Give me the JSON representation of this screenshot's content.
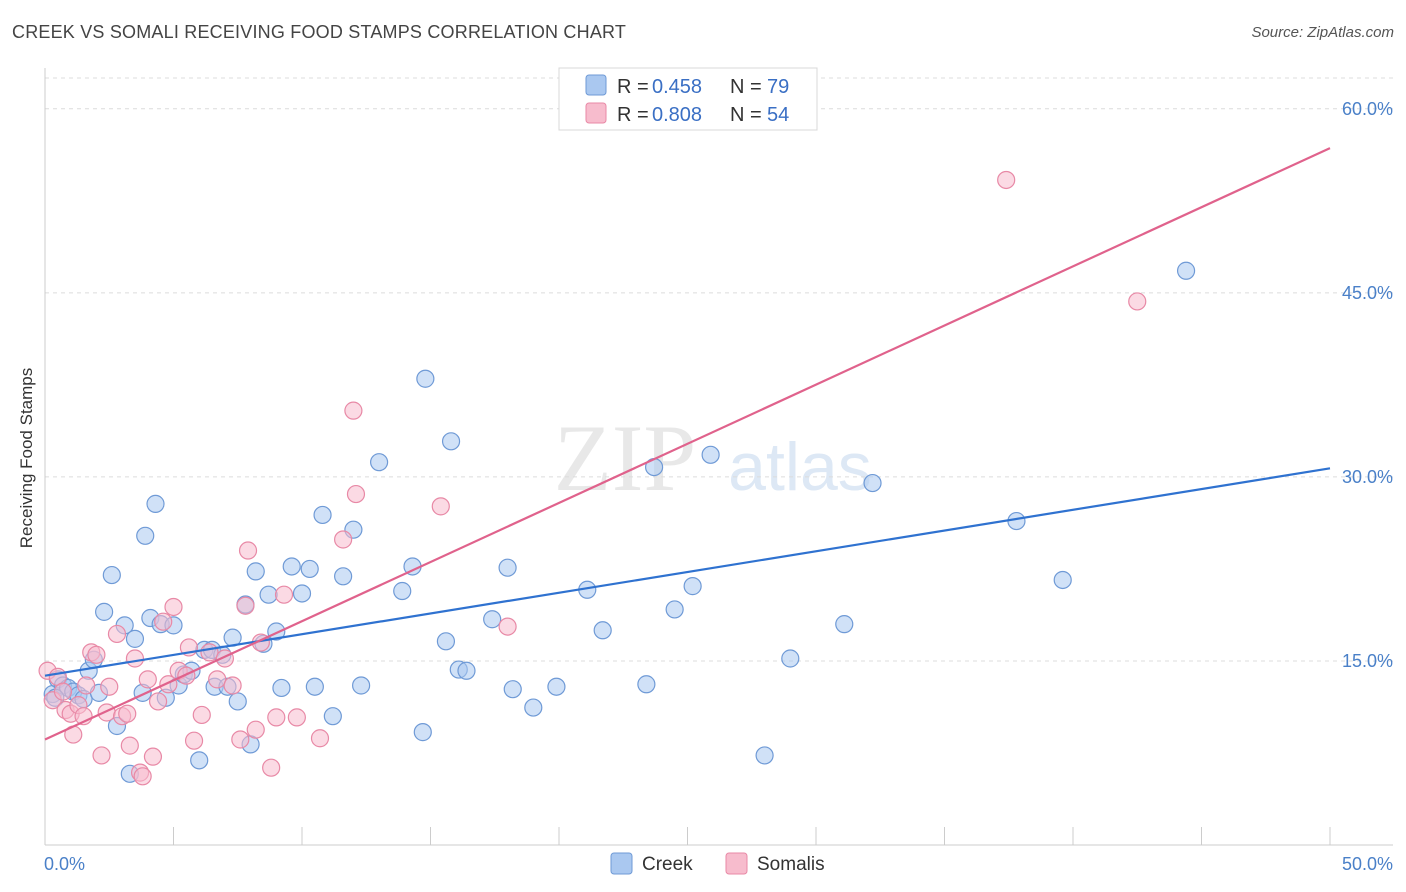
{
  "title": "CREEK VS SOMALI RECEIVING FOOD STAMPS CORRELATION CHART",
  "source": "Source: ZipAtlas.com",
  "watermark": {
    "zip": "ZIP",
    "atlas": "atlas"
  },
  "colors": {
    "creek_fill": "#aac8f0",
    "creek_stroke": "#6f9ad6",
    "creek_line": "#2f72d0",
    "somali_fill": "#f7bccd",
    "somali_stroke": "#e889a6",
    "somali_line": "#e0628c"
  },
  "legend": {
    "creek": {
      "r_label": "R =",
      "r_value": "0.458",
      "n_label": "N =",
      "n_value": "79"
    },
    "somali": {
      "r_label": "R =",
      "r_value": "0.808",
      "n_label": "N =",
      "n_value": "54"
    }
  },
  "bottom_legend": {
    "creek": "Creek",
    "somali": "Somalis"
  },
  "chart_data": {
    "type": "scatter",
    "title": "CREEK VS SOMALI RECEIVING FOOD STAMPS CORRELATION CHART",
    "xlabel": "",
    "ylabel": "Receiving Food Stamps",
    "xlim": [
      0,
      50
    ],
    "ylim": [
      0,
      63
    ],
    "x_tick_labels": [
      "0.0%",
      "50.0%"
    ],
    "y_ticks": [
      15,
      30,
      45,
      60
    ],
    "y_tick_labels": [
      "15.0%",
      "30.0%",
      "45.0%",
      "60.0%"
    ],
    "series": [
      {
        "name": "Creek",
        "r": 0.458,
        "n": 79,
        "trend": {
          "x": [
            0,
            50
          ],
          "y": [
            13.8,
            30.7
          ]
        },
        "points": [
          [
            0.3,
            12.3
          ],
          [
            0.5,
            13.5
          ],
          [
            0.7,
            13.0
          ],
          [
            0.9,
            12.8
          ],
          [
            1.1,
            12.5
          ],
          [
            1.3,
            12.2
          ],
          [
            1.5,
            11.9
          ],
          [
            1.7,
            14.2
          ],
          [
            1.9,
            15.1
          ],
          [
            2.1,
            12.4
          ],
          [
            2.3,
            19.0
          ],
          [
            2.6,
            22.0
          ],
          [
            2.8,
            9.7
          ],
          [
            3.1,
            17.9
          ],
          [
            3.3,
            5.8
          ],
          [
            3.5,
            16.8
          ],
          [
            3.8,
            12.4
          ],
          [
            3.9,
            25.2
          ],
          [
            4.1,
            18.5
          ],
          [
            4.3,
            27.8
          ],
          [
            4.5,
            18.0
          ],
          [
            4.7,
            12.0
          ],
          [
            5.0,
            17.9
          ],
          [
            5.2,
            13.0
          ],
          [
            5.4,
            13.9
          ],
          [
            5.7,
            14.2
          ],
          [
            6.0,
            6.9
          ],
          [
            6.2,
            15.9
          ],
          [
            6.5,
            15.9
          ],
          [
            6.6,
            12.9
          ],
          [
            6.9,
            15.5
          ],
          [
            7.1,
            12.9
          ],
          [
            7.3,
            16.9
          ],
          [
            7.5,
            11.7
          ],
          [
            7.8,
            19.6
          ],
          [
            8.0,
            8.2
          ],
          [
            8.2,
            22.3
          ],
          [
            8.5,
            16.4
          ],
          [
            8.7,
            20.4
          ],
          [
            9.0,
            17.4
          ],
          [
            9.2,
            12.8
          ],
          [
            9.6,
            22.7
          ],
          [
            10.0,
            20.5
          ],
          [
            10.3,
            22.5
          ],
          [
            10.5,
            12.9
          ],
          [
            10.8,
            26.9
          ],
          [
            11.2,
            10.5
          ],
          [
            11.6,
            21.9
          ],
          [
            12.0,
            25.7
          ],
          [
            12.3,
            13.0
          ],
          [
            13.0,
            31.2
          ],
          [
            13.9,
            20.7
          ],
          [
            14.3,
            22.7
          ],
          [
            14.7,
            9.2
          ],
          [
            14.8,
            38.0
          ],
          [
            15.6,
            16.6
          ],
          [
            15.8,
            32.9
          ],
          [
            16.1,
            14.3
          ],
          [
            16.4,
            14.2
          ],
          [
            17.4,
            18.4
          ],
          [
            18.0,
            22.6
          ],
          [
            18.2,
            12.7
          ],
          [
            19.0,
            11.2
          ],
          [
            19.9,
            12.9
          ],
          [
            21.1,
            20.8
          ],
          [
            21.7,
            17.5
          ],
          [
            23.4,
            13.1
          ],
          [
            23.7,
            30.8
          ],
          [
            24.5,
            19.2
          ],
          [
            25.2,
            21.1
          ],
          [
            25.9,
            31.8
          ],
          [
            28.0,
            7.3
          ],
          [
            29.0,
            15.2
          ],
          [
            31.1,
            18.0
          ],
          [
            32.2,
            29.5
          ],
          [
            37.8,
            26.4
          ],
          [
            39.6,
            21.6
          ],
          [
            44.4,
            46.8
          ],
          [
            0.4,
            12.0
          ]
        ]
      },
      {
        "name": "Somalis",
        "r": 0.808,
        "n": 54,
        "trend": {
          "x": [
            0,
            50
          ],
          "y": [
            8.6,
            56.8
          ]
        },
        "points": [
          [
            0.1,
            14.2
          ],
          [
            0.3,
            11.8
          ],
          [
            0.5,
            13.7
          ],
          [
            0.7,
            12.5
          ],
          [
            0.8,
            11.0
          ],
          [
            1.0,
            10.7
          ],
          [
            1.1,
            9.0
          ],
          [
            1.3,
            11.4
          ],
          [
            1.5,
            10.5
          ],
          [
            1.6,
            13.0
          ],
          [
            1.8,
            15.7
          ],
          [
            2.0,
            15.5
          ],
          [
            2.2,
            7.3
          ],
          [
            2.4,
            10.8
          ],
          [
            2.5,
            12.9
          ],
          [
            2.8,
            17.2
          ],
          [
            3.0,
            10.5
          ],
          [
            3.2,
            10.7
          ],
          [
            3.3,
            8.1
          ],
          [
            3.5,
            15.2
          ],
          [
            3.7,
            5.9
          ],
          [
            3.8,
            5.6
          ],
          [
            4.0,
            13.5
          ],
          [
            4.2,
            7.2
          ],
          [
            4.4,
            11.7
          ],
          [
            4.6,
            18.2
          ],
          [
            4.8,
            13.1
          ],
          [
            5.0,
            19.4
          ],
          [
            5.2,
            14.2
          ],
          [
            5.5,
            13.8
          ],
          [
            5.6,
            16.1
          ],
          [
            5.8,
            8.5
          ],
          [
            6.1,
            10.6
          ],
          [
            6.4,
            15.7
          ],
          [
            6.7,
            13.5
          ],
          [
            7.0,
            15.2
          ],
          [
            7.3,
            13.0
          ],
          [
            7.6,
            8.6
          ],
          [
            7.9,
            24.0
          ],
          [
            8.2,
            9.4
          ],
          [
            8.4,
            16.5
          ],
          [
            8.8,
            6.3
          ],
          [
            9.0,
            10.4
          ],
          [
            9.3,
            20.4
          ],
          [
            9.8,
            10.4
          ],
          [
            10.7,
            8.7
          ],
          [
            11.6,
            24.9
          ],
          [
            12.0,
            35.4
          ],
          [
            12.1,
            28.6
          ],
          [
            15.4,
            27.6
          ],
          [
            18.0,
            17.8
          ],
          [
            37.4,
            54.2
          ],
          [
            42.5,
            44.3
          ],
          [
            7.8,
            19.5
          ]
        ]
      }
    ]
  }
}
